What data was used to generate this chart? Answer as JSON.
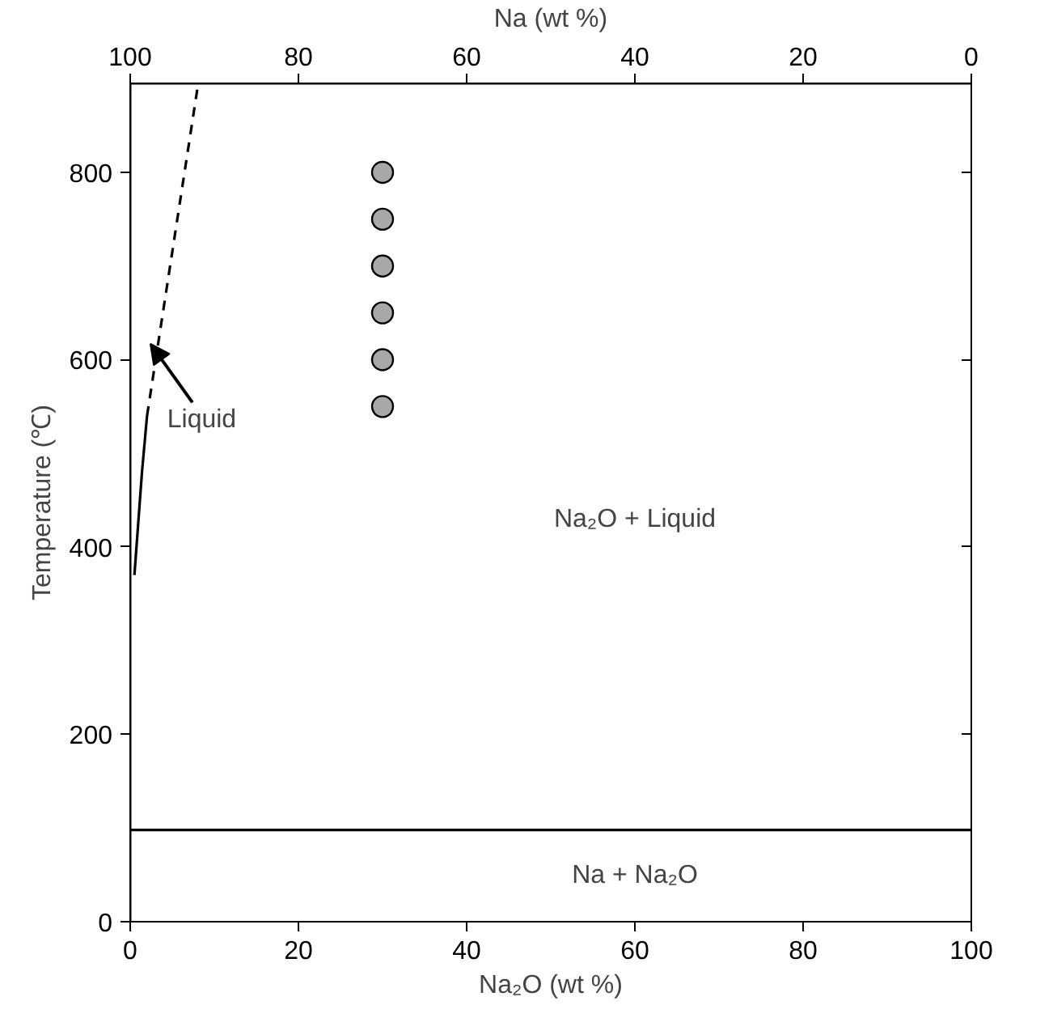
{
  "chart_data": {
    "type": "line",
    "xlabel": "Na₂O (wt %)",
    "ylabel": "Temperature (℃)",
    "x2label": "Na (wt %)",
    "xlim": [
      0,
      100
    ],
    "xticks": [
      0,
      20,
      40,
      60,
      80,
      100
    ],
    "x2lim": [
      100,
      0
    ],
    "x2ticks": [
      100,
      80,
      60,
      40,
      20,
      0
    ],
    "ylim": [
      0,
      895
    ],
    "yticks": [
      0,
      200,
      400,
      600,
      800
    ],
    "grid": false,
    "series": [
      {
        "color": "#000000",
        "line_style": "solid",
        "x": [
          0.5,
          1.4,
          2.0
        ],
        "values": [
          370,
          480,
          540
        ]
      },
      {
        "color": "#000000",
        "line_style": "dashed",
        "x": [
          2.0,
          8.0
        ],
        "values": [
          540,
          890
        ]
      },
      {
        "type": "scatter",
        "color": "#a8a8a8",
        "marker": "circle",
        "x": [
          30,
          30,
          30,
          30,
          30,
          30
        ],
        "values": [
          800,
          750,
          700,
          650,
          600,
          550
        ]
      }
    ],
    "ref_lines": [
      {
        "axis": "y",
        "value": 98,
        "color": "#000000",
        "line_style": "solid"
      }
    ],
    "annotations": [
      {
        "text": "Liquid",
        "x": 2.4,
        "y": 617
      },
      "Na₂O + Liquid",
      "Na + Na₂O"
    ]
  }
}
